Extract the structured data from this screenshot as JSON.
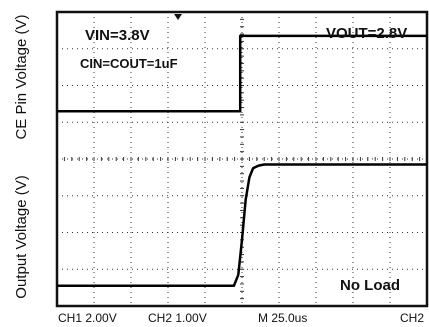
{
  "chart_data": {
    "type": "line",
    "title": "",
    "annotations": {
      "vin": "VIN=3.8V",
      "vout": "VOUT=2.8V",
      "caps": "CIN=COUT=1uF",
      "load": "No Load"
    },
    "y_labels": {
      "top": "CE Pin Voltage (V)",
      "bottom": "Output Voltage (V)"
    },
    "footer": {
      "ch1": "CH1  2.00V",
      "ch2": "CH2  1.00V",
      "time": "M 25.0us",
      "ch2_right": "CH2"
    },
    "grid": true,
    "x_divisions": 10,
    "y_divisions": 8,
    "xlim": [
      0,
      10
    ],
    "ylim": [
      0,
      8
    ],
    "series": [
      {
        "x": [
          0,
          4.95,
          4.95,
          10
        ],
        "values": [
          5.3,
          5.3,
          7.35,
          7.35
        ]
      },
      {
        "x": [
          0,
          4.78,
          4.9,
          5.0,
          5.1,
          5.2,
          5.3,
          5.45,
          5.6,
          6.0,
          10
        ],
        "values": [
          0.55,
          0.55,
          0.85,
          1.8,
          2.9,
          3.5,
          3.75,
          3.82,
          3.85,
          3.85,
          3.85
        ]
      }
    ]
  }
}
